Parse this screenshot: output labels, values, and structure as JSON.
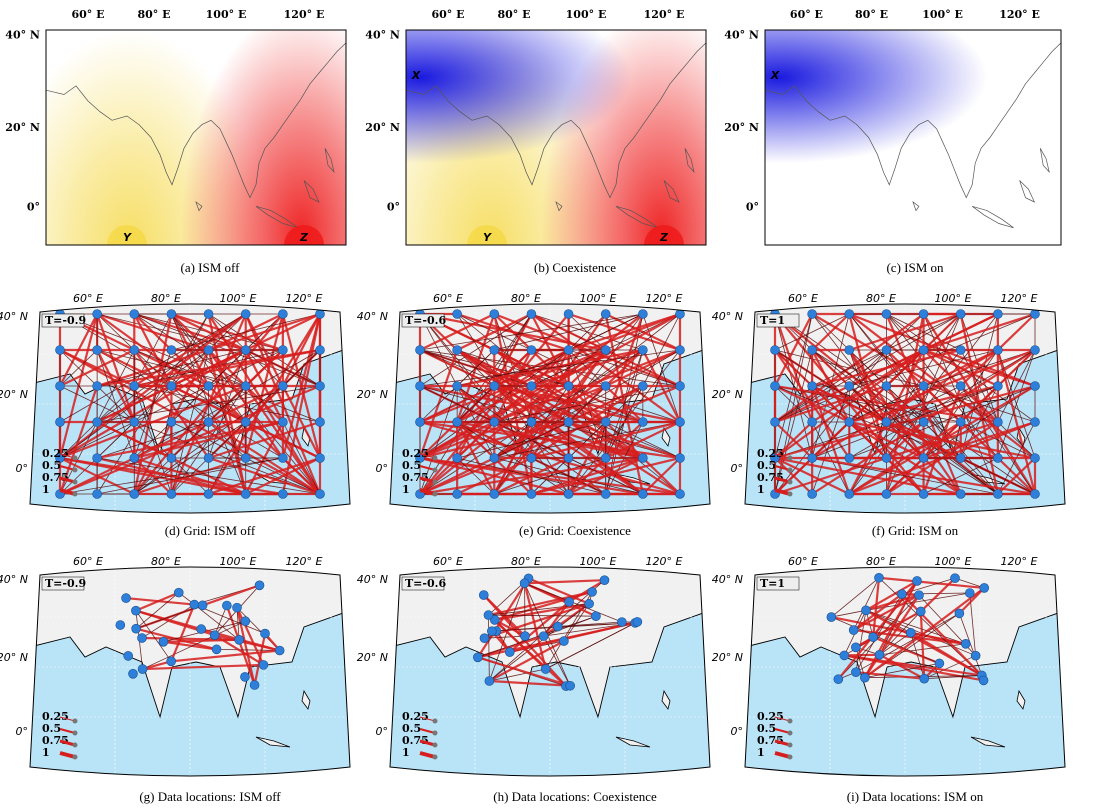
{
  "top_row": {
    "lon_ticks": [
      "60",
      "80",
      "100",
      "120"
    ],
    "lon_suffix": "E",
    "lat_ticks": [
      "40",
      "20",
      "0"
    ],
    "lat_suffix": "N",
    "deg": "°",
    "panels": [
      {
        "id": "a",
        "caption": "(a) ISM off",
        "marker_y": "Y",
        "marker_z": "Z",
        "marker_x": ""
      },
      {
        "id": "b",
        "caption": "(b) Coexistence",
        "marker_y": "Y",
        "marker_z": "Z",
        "marker_x": "X"
      },
      {
        "id": "c",
        "caption": "(c) ISM on",
        "marker_y": "",
        "marker_z": "",
        "marker_x": "X"
      }
    ]
  },
  "network_rows": {
    "lon_ticks": [
      "60",
      "80",
      "100",
      "120"
    ],
    "lon_suffix": "E",
    "lat_ticks": [
      "40",
      "20",
      "0"
    ],
    "lat_suffix": "N",
    "deg": "°",
    "legend_values": [
      "0.25",
      "0.5",
      "0.75",
      "1"
    ],
    "panels": [
      {
        "id": "d",
        "caption": "(d) Grid: ISM off",
        "threshold": "T=-0.9"
      },
      {
        "id": "e",
        "caption": "(e) Grid: Coexistence",
        "threshold": "T=-0.6"
      },
      {
        "id": "f",
        "caption": "(f) Grid: ISM on",
        "threshold": "T=1"
      },
      {
        "id": "g",
        "caption": "(g) Data locations: ISM off",
        "threshold": "T=-0.9"
      },
      {
        "id": "h",
        "caption": "(h) Data locations: Coexistence",
        "threshold": "T=-0.6"
      },
      {
        "id": "i",
        "caption": "(i) Data locations: ISM on",
        "threshold": "T=1"
      }
    ]
  },
  "colors": {
    "ocean": "#b9e3f7",
    "land": "#f1f1f1",
    "node": "#2e7fd9",
    "edge_red": "#d71e1e",
    "edge_dark": "#5a0a0a",
    "y_color": "#f5d94a",
    "z_color": "#ee1c1c",
    "x_color": "#1a1ae0"
  }
}
